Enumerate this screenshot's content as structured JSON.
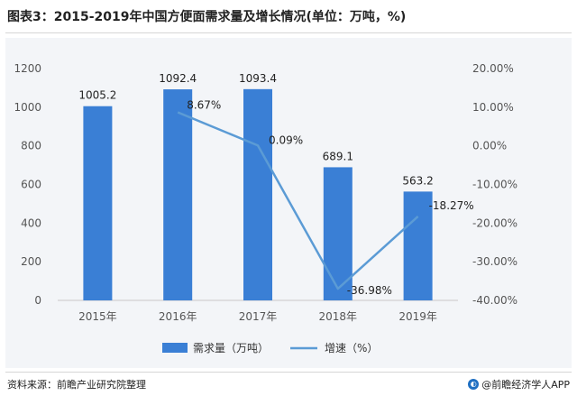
{
  "header": {
    "title": "图表3：2015-2019年中国方便面需求量及增长情况(单位：万吨，%)"
  },
  "footer": {
    "source": "资料来源：前瞻产业研究院整理",
    "brand": "@前瞻经济学人APP"
  },
  "chart_data": {
    "type": "bar",
    "categories": [
      "2015年",
      "2016年",
      "2017年",
      "2018年",
      "2019年"
    ],
    "series": [
      {
        "name": "需求量（万吨）",
        "type": "bar",
        "axis": "left",
        "values": [
          1005.2,
          1092.4,
          1093.4,
          689.1,
          563.2
        ],
        "labels": [
          "1005.2",
          "1092.4",
          "1093.4",
          "689.1",
          "563.2"
        ],
        "color": "#3a7fd5"
      },
      {
        "name": "增速（%）",
        "type": "line",
        "axis": "right",
        "values": [
          null,
          8.67,
          0.09,
          -36.98,
          -18.27
        ],
        "labels": [
          "",
          "8.67%",
          "0.09%",
          "-36.98%",
          "-18.27%"
        ],
        "color": "#5b9bd5"
      }
    ],
    "y_left": {
      "ylim": [
        0,
        1200
      ],
      "ticks": [
        "0",
        "200",
        "400",
        "600",
        "800",
        "1000",
        "1200"
      ]
    },
    "y_right": {
      "ylim": [
        -40,
        20
      ],
      "ticks": [
        "-40.00%",
        "-30.00%",
        "-20.00%",
        "-10.00%",
        "0.00%",
        "10.00%",
        "20.00%"
      ]
    },
    "legend": {
      "position": "bottom",
      "items": [
        "需求量（万吨）",
        "增速（%）"
      ]
    },
    "grid": false
  }
}
